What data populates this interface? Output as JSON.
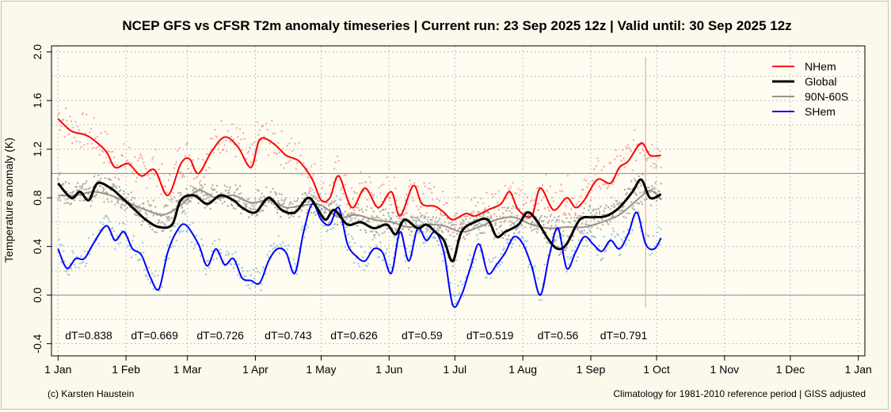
{
  "chart_data": {
    "type": "line",
    "title": "NCEP GFS vs CFSR T2m anomaly timeseries | Current run: 23 Sep 2025 12z | Valid until: 30 Sep 2025 12z",
    "xlabel": "",
    "ylabel": "Temperature anomaly (K)",
    "ylim": [
      -0.5,
      2.05
    ],
    "yticks": [
      -0.4,
      0.0,
      0.4,
      0.8,
      1.2,
      1.6,
      2.0
    ],
    "ytick_labels": [
      "-0.4",
      "0.0",
      "0.4",
      "0.8",
      "1.2",
      "1.6",
      "2.0"
    ],
    "x_unit": "day of year 2025",
    "xlim": [
      -3,
      368
    ],
    "xticks": [
      0,
      31,
      59,
      90,
      120,
      151,
      181,
      212,
      243,
      273,
      304,
      334,
      365
    ],
    "xtick_labels": [
      "1 Jan",
      "1 Feb",
      "1 Mar",
      "1 Apr",
      "1 May",
      "1 Jun",
      "1 Jul",
      "1 Aug",
      "1 Sep",
      "1 Oct",
      "1 Nov",
      "1 Dec",
      "1 Jan"
    ],
    "grid": true,
    "reference_lines": [
      0.0,
      1.0
    ],
    "forecast_start_day": 268,
    "legend_position": "top-right",
    "series": [
      {
        "name": "NHem",
        "color": "#ff0000",
        "point_color": "#f4a6ad",
        "x": [
          0,
          6,
          12,
          16,
          22,
          26,
          32,
          38,
          44,
          50,
          56,
          60,
          64,
          70,
          76,
          82,
          88,
          92,
          98,
          104,
          110,
          116,
          120,
          124,
          128,
          134,
          140,
          146,
          152,
          156,
          162,
          166,
          172,
          176,
          180,
          186,
          190,
          196,
          202,
          206,
          210,
          216,
          220,
          226,
          232,
          236,
          240,
          246,
          252,
          256,
          260,
          266,
          270,
          275
        ],
        "y": [
          1.45,
          1.35,
          1.32,
          1.28,
          1.18,
          1.05,
          1.08,
          0.98,
          1.03,
          0.82,
          1.08,
          1.12,
          1.0,
          1.18,
          1.3,
          1.22,
          1.05,
          1.28,
          1.25,
          1.15,
          1.1,
          0.95,
          0.78,
          0.8,
          0.98,
          0.72,
          0.88,
          0.72,
          0.85,
          0.65,
          0.9,
          0.75,
          0.73,
          0.68,
          0.62,
          0.67,
          0.65,
          0.7,
          0.75,
          0.85,
          0.7,
          0.65,
          0.88,
          0.7,
          0.8,
          0.72,
          0.78,
          0.95,
          0.92,
          1.05,
          1.1,
          1.25,
          1.15,
          1.15
        ]
      },
      {
        "name": "Global",
        "color": "#000000",
        "point_color": "#a9a9a9",
        "x": [
          0,
          6,
          10,
          14,
          18,
          24,
          28,
          34,
          40,
          46,
          52,
          56,
          62,
          68,
          74,
          80,
          84,
          90,
          96,
          102,
          108,
          114,
          118,
          122,
          126,
          132,
          138,
          144,
          150,
          154,
          158,
          164,
          168,
          172,
          176,
          180,
          184,
          190,
          196,
          200,
          204,
          210,
          214,
          218,
          224,
          228,
          232,
          238,
          244,
          250,
          256,
          262,
          266,
          270,
          275
        ],
        "y": [
          0.92,
          0.8,
          0.85,
          0.78,
          0.92,
          0.88,
          0.82,
          0.72,
          0.62,
          0.56,
          0.58,
          0.78,
          0.82,
          0.75,
          0.82,
          0.78,
          0.72,
          0.68,
          0.8,
          0.7,
          0.68,
          0.8,
          0.72,
          0.62,
          0.7,
          0.58,
          0.6,
          0.55,
          0.58,
          0.5,
          0.62,
          0.55,
          0.58,
          0.52,
          0.45,
          0.28,
          0.52,
          0.6,
          0.62,
          0.48,
          0.52,
          0.58,
          0.68,
          0.62,
          0.45,
          0.38,
          0.42,
          0.62,
          0.64,
          0.65,
          0.72,
          0.85,
          0.95,
          0.8,
          0.83
        ]
      },
      {
        "name": "90N-60S",
        "color": "#9b9289",
        "point_color": "#b3aea6",
        "x": [
          0,
          8,
          16,
          24,
          32,
          40,
          48,
          56,
          64,
          72,
          80,
          88,
          96,
          104,
          112,
          120,
          128,
          136,
          144,
          152,
          160,
          168,
          176,
          184,
          192,
          200,
          208,
          216,
          224,
          232,
          240,
          248,
          256,
          264,
          270,
          275
        ],
        "y": [
          0.82,
          0.82,
          0.85,
          0.82,
          0.76,
          0.7,
          0.66,
          0.74,
          0.86,
          0.8,
          0.82,
          0.76,
          0.78,
          0.72,
          0.74,
          0.74,
          0.64,
          0.66,
          0.62,
          0.6,
          0.56,
          0.58,
          0.57,
          0.52,
          0.56,
          0.62,
          0.64,
          0.58,
          0.55,
          0.56,
          0.56,
          0.6,
          0.66,
          0.78,
          0.86,
          0.79
        ]
      },
      {
        "name": "SHem",
        "color": "#0000ff",
        "point_color": "#98c8e6",
        "x": [
          0,
          4,
          8,
          12,
          16,
          22,
          26,
          30,
          34,
          38,
          42,
          46,
          50,
          54,
          58,
          64,
          68,
          72,
          76,
          80,
          84,
          88,
          92,
          96,
          100,
          104,
          108,
          112,
          116,
          120,
          124,
          128,
          132,
          136,
          140,
          144,
          148,
          152,
          156,
          160,
          164,
          168,
          172,
          176,
          180,
          184,
          188,
          192,
          196,
          200,
          204,
          208,
          212,
          216,
          220,
          224,
          228,
          232,
          236,
          240,
          244,
          248,
          252,
          256,
          260,
          264,
          268,
          272,
          275
        ],
        "y": [
          0.38,
          0.22,
          0.3,
          0.3,
          0.42,
          0.57,
          0.45,
          0.52,
          0.38,
          0.33,
          0.15,
          0.05,
          0.35,
          0.52,
          0.58,
          0.42,
          0.24,
          0.38,
          0.25,
          0.3,
          0.14,
          0.12,
          0.1,
          0.28,
          0.38,
          0.35,
          0.18,
          0.52,
          0.75,
          0.62,
          0.58,
          0.72,
          0.42,
          0.32,
          0.28,
          0.38,
          0.35,
          0.18,
          0.52,
          0.28,
          0.55,
          0.45,
          0.52,
          0.35,
          -0.08,
          0.0,
          0.22,
          0.42,
          0.18,
          0.25,
          0.35,
          0.48,
          0.42,
          0.24,
          0.0,
          0.32,
          0.55,
          0.22,
          0.35,
          0.48,
          0.42,
          0.36,
          0.45,
          0.38,
          0.5,
          0.68,
          0.42,
          0.38,
          0.47
        ]
      }
    ],
    "annotations": [
      {
        "x": 14,
        "label": "dT=0.838"
      },
      {
        "x": 44,
        "label": "dT=0.669"
      },
      {
        "x": 74,
        "label": "dT=0.726"
      },
      {
        "x": 105,
        "label": "dT=0.743"
      },
      {
        "x": 135,
        "label": "dT=0.626"
      },
      {
        "x": 166,
        "label": "dT=0.59"
      },
      {
        "x": 197,
        "label": "dT=0.519"
      },
      {
        "x": 228,
        "label": "dT=0.56"
      },
      {
        "x": 258,
        "label": "dT=0.791"
      }
    ]
  },
  "footer": {
    "left": "(c) Karsten Haustein",
    "right": "Climatology for 1981-2010 reference period | GISS adjusted"
  }
}
